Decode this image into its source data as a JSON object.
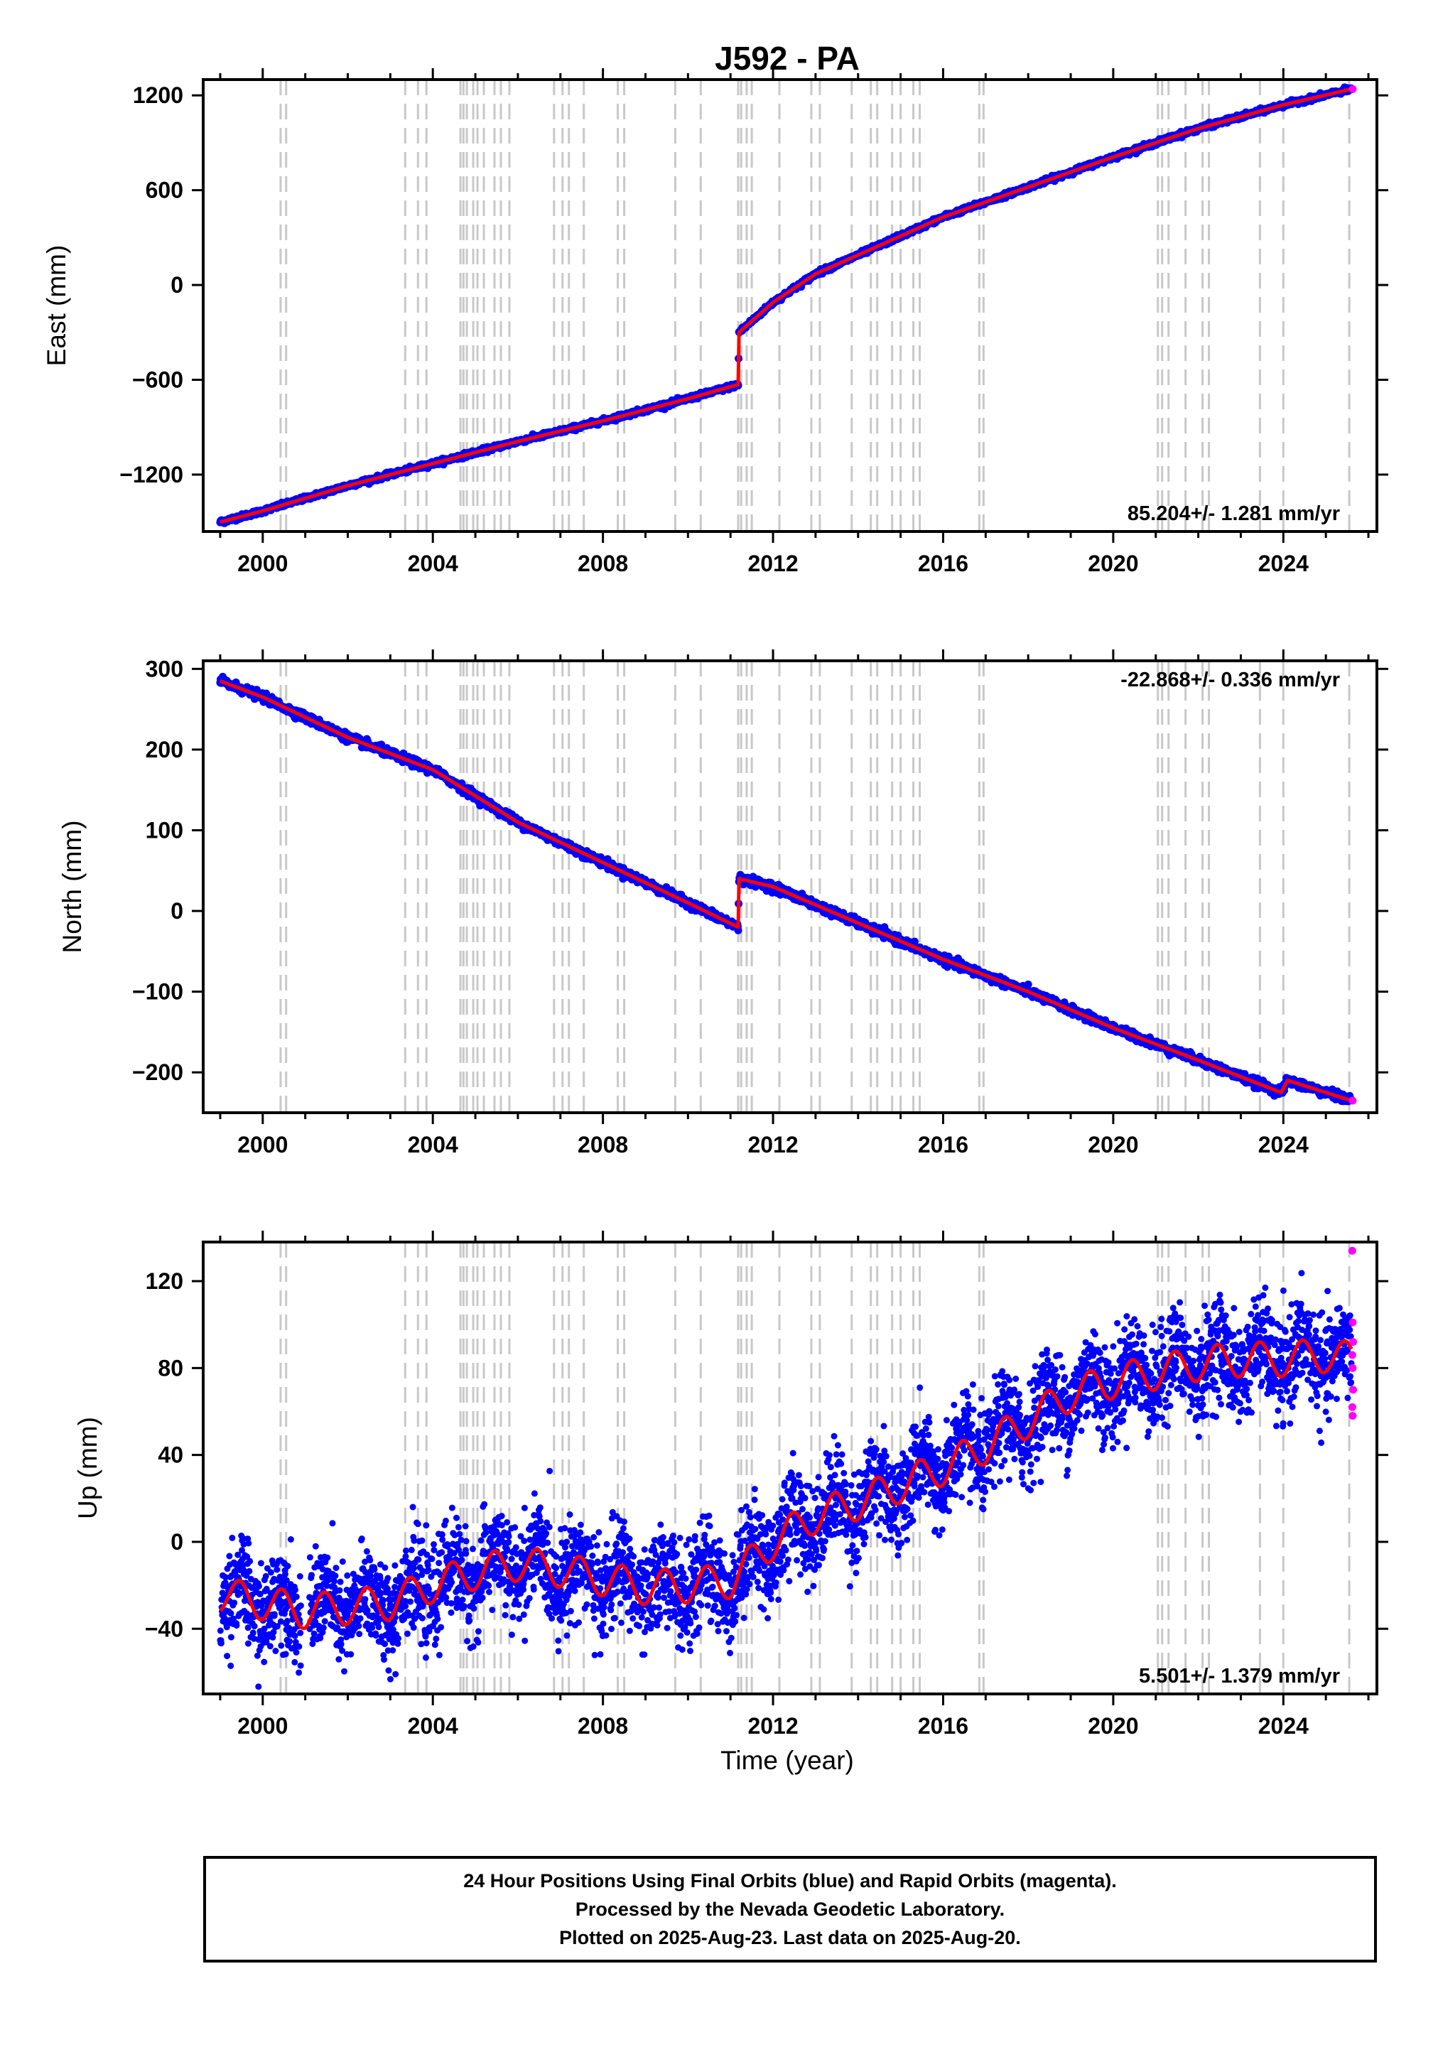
{
  "title": "J592 - PA",
  "xlabel": "Time (year)",
  "footer": {
    "line1": "24 Hour Positions Using Final Orbits (blue) and Rapid Orbits (magenta).",
    "line2": "Processed by the Nevada Geodetic Laboratory.",
    "line3": "Plotted on 2025-Aug-23. Last data on 2025-Aug-20."
  },
  "colors": {
    "final_orbits": "#0000ff",
    "rapid_orbits": "#ff00ff",
    "model_fit": "#ff0000",
    "event_lines": "#c8c8c8"
  },
  "event_years": [
    2000.42,
    2000.55,
    2003.35,
    2003.65,
    2003.85,
    2004.65,
    2004.72,
    2004.8,
    2004.95,
    2005.05,
    2005.2,
    2005.45,
    2005.6,
    2005.8,
    2006.85,
    2007.05,
    2007.2,
    2007.55,
    2008.35,
    2008.5,
    2009.7,
    2010.3,
    2011.18,
    2011.25,
    2011.38,
    2011.5,
    2012.15,
    2012.9,
    2013.1,
    2013.85,
    2014.3,
    2014.45,
    2014.8,
    2015.0,
    2015.3,
    2015.45,
    2016.85,
    2016.95,
    2021.05,
    2021.15,
    2021.3,
    2021.7,
    2022.1,
    2022.25,
    2023.45,
    2024.0,
    2025.55
  ],
  "chart_data": [
    {
      "type": "scatter",
      "name": "east",
      "ylabel": "East (mm)",
      "rate_label": "85.204+/- 1.281 mm/yr",
      "xlim": [
        1998.6,
        2026.2
      ],
      "ylim": [
        -1560,
        1300
      ],
      "yticks": [
        -1200,
        -600,
        0,
        600,
        1200
      ],
      "xticks": [
        2000,
        2004,
        2008,
        2012,
        2016,
        2020,
        2024
      ],
      "grid": false,
      "model": {
        "slope": 85.204,
        "t0": 1999.0,
        "v0": -1500,
        "offsets": [
          {
            "year": 2011.19,
            "value": 340
          }
        ],
        "postseismic": {
          "year": 2011.19,
          "amp": 130,
          "tau": 0.9
        },
        "seasonal_amp": 4
      },
      "x": [
        1999.0,
        2000.0,
        2002.0,
        2004.0,
        2006.0,
        2008.0,
        2010.0,
        2011.18,
        2011.2,
        2012.0,
        2013.0,
        2014.0,
        2016.0,
        2018.0,
        2020.0,
        2022.0,
        2024.0,
        2025.6
      ],
      "y": [
        -1500,
        -1430,
        -1270,
        -1130,
        -990,
        -860,
        -720,
        -630,
        -300,
        -110,
        70,
        190,
        430,
        620,
        810,
        990,
        1140,
        1240
      ]
    },
    {
      "type": "scatter",
      "name": "north",
      "ylabel": "North (mm)",
      "rate_label": "-22.868+/- 0.336 mm/yr",
      "xlim": [
        1998.6,
        2026.2
      ],
      "ylim": [
        -250,
        310
      ],
      "yticks": [
        -200,
        -100,
        0,
        100,
        200,
        300
      ],
      "xticks": [
        2000,
        2004,
        2008,
        2012,
        2016,
        2020,
        2024
      ],
      "grid": false,
      "model": {
        "slope": -22.868,
        "t0": 1999.0,
        "v0": 283,
        "offsets": [
          {
            "year": 2011.19,
            "value": 62
          },
          {
            "year": 2024.05,
            "value": 12
          }
        ],
        "postseismic": {
          "year": 2011.19,
          "amp": 0,
          "tau": 1
        },
        "seasonal_amp": 1.5
      },
      "x": [
        1999.0,
        2000.0,
        2002.0,
        2004.0,
        2006.0,
        2008.0,
        2010.0,
        2011.18,
        2011.2,
        2012.0,
        2014.0,
        2016.0,
        2018.0,
        2020.0,
        2022.0,
        2023.95,
        2024.1,
        2025.6
      ],
      "y": [
        285,
        265,
        215,
        175,
        110,
        60,
        10,
        -20,
        40,
        30,
        -15,
        -60,
        -100,
        -145,
        -185,
        -225,
        -210,
        -235
      ]
    },
    {
      "type": "scatter",
      "name": "up",
      "ylabel": "Up (mm)",
      "rate_label": "5.501+/- 1.379 mm/yr",
      "xlim": [
        1998.6,
        2026.2
      ],
      "ylim": [
        -70,
        138
      ],
      "yticks": [
        -40,
        0,
        40,
        80,
        120
      ],
      "xticks": [
        2000,
        2004,
        2008,
        2012,
        2016,
        2020,
        2024
      ],
      "grid": false,
      "x": [
        1999.0,
        2000.0,
        2001.0,
        2002.0,
        2003.0,
        2004.0,
        2005.0,
        2006.0,
        2007.0,
        2008.0,
        2009.0,
        2010.0,
        2011.0,
        2012.0,
        2013.0,
        2014.0,
        2015.0,
        2016.0,
        2017.0,
        2018.0,
        2019.0,
        2020.0,
        2021.0,
        2022.0,
        2023.0,
        2024.0,
        2025.0,
        2025.6
      ],
      "y": [
        -24,
        -28,
        -32,
        -30,
        -28,
        -20,
        -14,
        -10,
        -13,
        -17,
        -21,
        -20,
        -18,
        0,
        12,
        18,
        26,
        34,
        44,
        56,
        68,
        74,
        78,
        82,
        84,
        84,
        86,
        84
      ],
      "seasonal_amp": 8,
      "rapid_orbits": [
        {
          "x": 2025.62,
          "y": 134
        },
        {
          "x": 2025.63,
          "y": 101
        },
        {
          "x": 2025.64,
          "y": 92
        },
        {
          "x": 2025.62,
          "y": 86
        },
        {
          "x": 2025.63,
          "y": 80
        },
        {
          "x": 2025.64,
          "y": 70
        },
        {
          "x": 2025.62,
          "y": 62
        },
        {
          "x": 2025.63,
          "y": 58
        }
      ]
    }
  ]
}
